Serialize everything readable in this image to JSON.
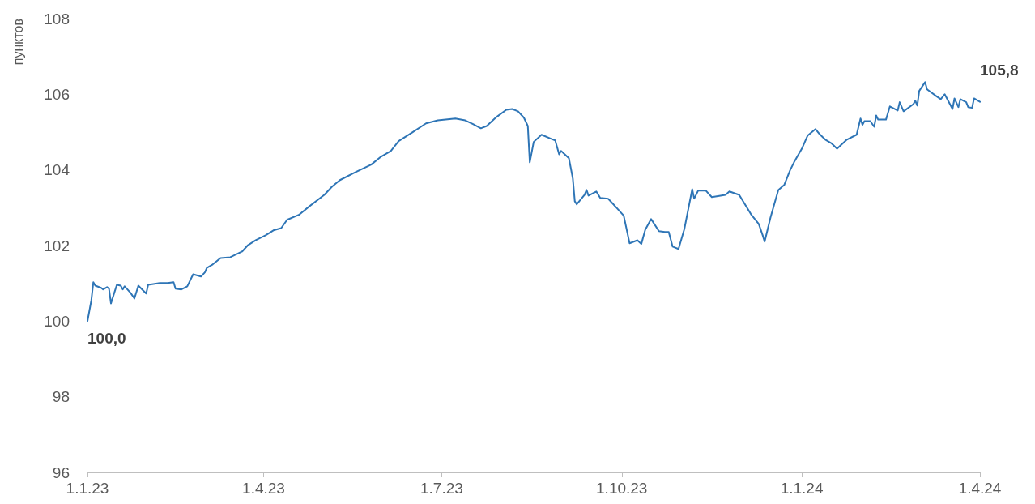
{
  "chart_data": {
    "type": "line",
    "ylabel": "пунктов",
    "x": [
      "2023-01-01",
      "2023-01-03",
      "2023-01-04",
      "2023-01-05",
      "2023-01-08",
      "2023-01-09",
      "2023-01-11",
      "2023-01-12",
      "2023-01-13",
      "2023-01-16",
      "2023-01-18",
      "2023-01-19",
      "2023-01-20",
      "2023-01-23",
      "2023-01-25",
      "2023-01-27",
      "2023-01-31",
      "2023-02-01",
      "2023-02-07",
      "2023-02-11",
      "2023-02-14",
      "2023-02-15",
      "2023-02-18",
      "2023-02-21",
      "2023-02-24",
      "2023-02-28",
      "2023-03-02",
      "2023-03-03",
      "2023-03-06",
      "2023-03-10",
      "2023-03-15",
      "2023-03-21",
      "2023-03-24",
      "2023-03-28",
      "2023-04-02",
      "2023-04-06",
      "2023-04-10",
      "2023-04-13",
      "2023-04-19",
      "2023-04-24",
      "2023-05-02",
      "2023-05-06",
      "2023-05-10",
      "2023-05-18",
      "2023-05-26",
      "2023-05-31",
      "2023-06-05",
      "2023-06-09",
      "2023-06-16",
      "2023-06-23",
      "2023-06-29",
      "2023-07-03",
      "2023-07-08",
      "2023-07-13",
      "2023-07-17",
      "2023-07-21",
      "2023-07-24",
      "2023-07-29",
      "2023-08-03",
      "2023-08-06",
      "2023-08-09",
      "2023-08-12",
      "2023-08-14",
      "2023-08-15",
      "2023-08-17",
      "2023-08-21",
      "2023-08-26",
      "2023-08-28",
      "2023-08-30",
      "2023-08-31",
      "2023-09-04",
      "2023-09-06",
      "2023-09-07",
      "2023-09-08",
      "2023-09-12",
      "2023-09-13",
      "2023-09-14",
      "2023-09-18",
      "2023-09-20",
      "2023-09-24",
      "2023-09-26",
      "2023-09-29",
      "2023-10-02",
      "2023-10-05",
      "2023-10-09",
      "2023-10-11",
      "2023-10-13",
      "2023-10-16",
      "2023-10-20",
      "2023-10-23",
      "2023-10-25",
      "2023-10-27",
      "2023-10-30",
      "2023-11-02",
      "2023-11-06",
      "2023-11-07",
      "2023-11-09",
      "2023-11-13",
      "2023-11-16",
      "2023-11-23",
      "2023-11-25",
      "2023-11-30",
      "2023-12-06",
      "2023-12-10",
      "2023-12-12",
      "2023-12-13",
      "2023-12-16",
      "2023-12-20",
      "2023-12-23",
      "2023-12-26",
      "2023-12-28",
      "2024-01-01",
      "2024-01-04",
      "2024-01-08",
      "2024-01-10",
      "2024-01-13",
      "2024-01-16",
      "2024-01-19",
      "2024-01-24",
      "2024-01-29",
      "2024-01-31",
      "2024-02-01",
      "2024-02-02",
      "2024-02-05",
      "2024-02-07",
      "2024-02-08",
      "2024-02-09",
      "2024-02-13",
      "2024-02-15",
      "2024-02-19",
      "2024-02-20",
      "2024-02-22",
      "2024-02-27",
      "2024-02-28",
      "2024-02-29",
      "2024-03-01",
      "2024-03-04",
      "2024-03-05",
      "2024-03-10",
      "2024-03-12",
      "2024-03-14",
      "2024-03-18",
      "2024-03-19",
      "2024-03-21",
      "2024-03-22",
      "2024-03-25",
      "2024-03-26",
      "2024-03-28",
      "2024-03-29",
      "2024-04-01"
    ],
    "series": [
      {
        "color": "#2e75b6",
        "values": [
          100.0,
          100.56,
          101.03,
          100.94,
          100.88,
          100.84,
          100.9,
          100.86,
          100.47,
          100.96,
          100.94,
          100.84,
          100.92,
          100.75,
          100.6,
          100.94,
          100.73,
          100.96,
          101.01,
          101.01,
          101.03,
          100.86,
          100.84,
          100.92,
          101.24,
          101.18,
          101.29,
          101.41,
          101.5,
          101.67,
          101.69,
          101.84,
          102.01,
          102.14,
          102.27,
          102.4,
          102.46,
          102.68,
          102.81,
          103.02,
          103.34,
          103.56,
          103.73,
          103.94,
          104.14,
          104.35,
          104.5,
          104.76,
          104.99,
          105.23,
          105.31,
          105.33,
          105.36,
          105.31,
          105.21,
          105.1,
          105.16,
          105.4,
          105.59,
          105.61,
          105.55,
          105.38,
          105.16,
          104.2,
          104.74,
          104.93,
          104.82,
          104.78,
          104.41,
          104.5,
          104.31,
          103.77,
          103.17,
          103.09,
          103.34,
          103.47,
          103.32,
          103.43,
          103.26,
          103.24,
          103.13,
          102.96,
          102.79,
          102.06,
          102.14,
          102.04,
          102.42,
          102.7,
          102.38,
          102.36,
          102.36,
          101.97,
          101.91,
          102.44,
          103.49,
          103.24,
          103.45,
          103.45,
          103.28,
          103.34,
          103.43,
          103.34,
          102.83,
          102.57,
          102.27,
          102.1,
          102.74,
          103.47,
          103.6,
          103.99,
          104.2,
          104.56,
          104.91,
          105.08,
          104.95,
          104.8,
          104.71,
          104.56,
          104.8,
          104.93,
          105.36,
          105.19,
          105.29,
          105.29,
          105.14,
          105.44,
          105.33,
          105.33,
          105.68,
          105.57,
          105.79,
          105.55,
          105.74,
          105.83,
          105.7,
          106.09,
          106.32,
          106.13,
          105.94,
          105.87,
          106.0,
          105.61,
          105.89,
          105.66,
          105.87,
          105.79,
          105.66,
          105.64,
          105.89,
          105.8
        ],
        "value_labels": [
          "100,0",
          null,
          null,
          null,
          null,
          null,
          null,
          null,
          null,
          null,
          null,
          null,
          null,
          null,
          null,
          null,
          null,
          null,
          null,
          null,
          null,
          null,
          null,
          null,
          null,
          null,
          null,
          null,
          null,
          null,
          null,
          null,
          null,
          null,
          null,
          null,
          null,
          null,
          null,
          null,
          null,
          null,
          null,
          null,
          null,
          null,
          null,
          null,
          null,
          null,
          null,
          null,
          null,
          null,
          null,
          null,
          null,
          null,
          null,
          null,
          null,
          null,
          null,
          null,
          null,
          null,
          null,
          null,
          null,
          null,
          null,
          null,
          null,
          null,
          null,
          null,
          null,
          null,
          null,
          null,
          null,
          null,
          null,
          null,
          null,
          null,
          null,
          null,
          null,
          null,
          null,
          null,
          null,
          null,
          null,
          null,
          null,
          null,
          null,
          null,
          null,
          null,
          null,
          null,
          null,
          null,
          null,
          null,
          null,
          null,
          null,
          null,
          null,
          null,
          null,
          null,
          null,
          null,
          null,
          null,
          null,
          null,
          null,
          null,
          null,
          null,
          null,
          null,
          null,
          null,
          null,
          null,
          null,
          null,
          null,
          null,
          null,
          null,
          null,
          null,
          null,
          null,
          null,
          null,
          null,
          null,
          null,
          null,
          null,
          "105,8"
        ]
      }
    ],
    "xlim": [
      "2023-01-01",
      "2024-04-01"
    ],
    "xticks": [
      {
        "value": "2023-01-01",
        "label": "1.1.23"
      },
      {
        "value": "2023-04-01",
        "label": "1.4.23"
      },
      {
        "value": "2023-07-01",
        "label": "1.7.23"
      },
      {
        "value": "2023-10-01",
        "label": "1.10.23"
      },
      {
        "value": "2024-01-01",
        "label": "1.1.24"
      },
      {
        "value": "2024-04-01",
        "label": "1.4.24"
      }
    ],
    "ylim": [
      96,
      108
    ],
    "yticks": [
      96,
      98,
      100,
      102,
      104,
      106,
      108
    ],
    "grid": false,
    "marker": "none",
    "line_style": "solid"
  }
}
